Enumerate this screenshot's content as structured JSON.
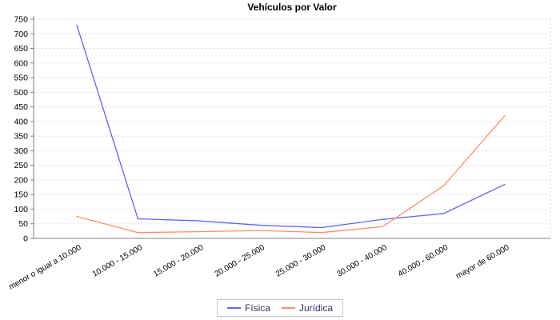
{
  "title": "Vehículos por Valor",
  "colors": {
    "background": "#ffffff",
    "title_text": "#000000",
    "grid": "#d8d8d8",
    "axis": "#7f7f7f",
    "tick_label": "#000000",
    "legend_text": "#3d2b66",
    "legend_border": "#c8c8c8",
    "series_fisica": "#6464f0",
    "series_juridica": "#ff8e63"
  },
  "chart_data": {
    "type": "line",
    "title": "Vehículos por Valor",
    "categories": [
      "menor o igual a 10.000",
      "10.000 - 15.000",
      "15.000 - 20.000",
      "20.000 - 25.000",
      "25.000 - 30.000",
      "30.000 - 40.000",
      "40.000 - 60.000",
      "mayor de 60.000"
    ],
    "series": [
      {
        "name": "Física",
        "color": "#6464f0",
        "values": [
          730,
          67,
          60,
          45,
          37,
          65,
          85,
          185
        ]
      },
      {
        "name": "Jurídica",
        "color": "#ff8e63",
        "values": [
          75,
          20,
          23,
          27,
          20,
          40,
          180,
          420
        ]
      }
    ],
    "xlabel": "",
    "ylabel": "",
    "ylim": [
      0,
      750
    ],
    "ytick_step": 50,
    "grid": "horizontal-dashed",
    "legend_position": "bottom"
  }
}
